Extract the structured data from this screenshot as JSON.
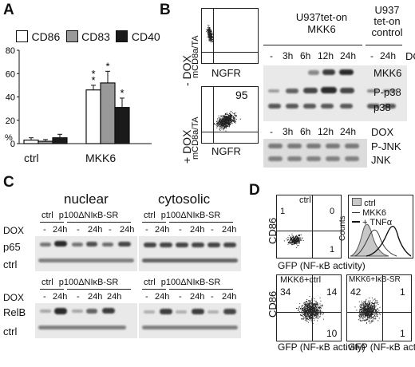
{
  "panel_a": {
    "letter": "A",
    "chart_data": {
      "type": "bar",
      "categories": [
        "ctrl",
        "MKK6"
      ],
      "series": [
        {
          "name": "CD86",
          "values": [
            3,
            46
          ],
          "errors": [
            2,
            4
          ],
          "color": "#ffffff"
        },
        {
          "name": "CD83",
          "values": [
            2,
            52
          ],
          "errors": [
            1.5,
            10
          ],
          "color": "#999999"
        },
        {
          "name": "CD40",
          "values": [
            5,
            31
          ],
          "errors": [
            3,
            8
          ],
          "color": "#1a1a1a"
        }
      ],
      "ylim": [
        0,
        80
      ],
      "yticks": [
        "0",
        "20",
        "40",
        "60",
        "80"
      ],
      "ylabel": "%",
      "significance": "*"
    }
  },
  "panel_b": {
    "letter": "B",
    "minus_dox": "- DOX",
    "plus_dox": "+ DOX",
    "yaxis": "mCD8a/TA",
    "xaxis": "NGFR",
    "quad_value": "95",
    "group1": "U937tet-on MKK6",
    "group1_l1": "U937tet-on",
    "group1_l2": "MKK6",
    "group2_l1": "U937",
    "group2_l2": "tet-on",
    "group2_l3": "control",
    "lanes_top": [
      "-",
      "3h",
      "6h",
      "12h",
      "24h",
      "-",
      "24h"
    ],
    "lanes_bottom": [
      "-",
      "3h",
      "6h",
      "12h",
      "24h"
    ],
    "dox_label": "DOX",
    "blot_labels": [
      "MKK6",
      "P-p38",
      "p38",
      "P-JNK",
      "JNK"
    ]
  },
  "panel_c": {
    "letter": "C",
    "nuclear": "nuclear",
    "cytosolic": "cytosolic",
    "ctrl": "ctrl",
    "construct": "p100ΔNIκB-SR",
    "dox": "DOX",
    "lanes_1": [
      "-",
      "24h",
      "-",
      "24h",
      "-",
      "24h"
    ],
    "lanes_2": [
      "-",
      "24h",
      "-",
      "24h",
      "24h"
    ],
    "lanes_3": [
      "-",
      "24h",
      "-",
      "24h",
      "-",
      "24h"
    ],
    "lanes_4": [
      "-",
      "24h",
      "-",
      "24h",
      "-",
      "24h"
    ],
    "row_p65": "p65",
    "row_relb": "RelB",
    "row_ctrl": "ctrl"
  },
  "panel_d": {
    "letter": "D",
    "plot1_title": "ctrl",
    "plot1_quads": [
      "1",
      "0",
      "1"
    ],
    "plot3_title": "MKK6+ctrl",
    "plot3_quads": [
      "34",
      "14",
      "10"
    ],
    "plot4_title": "MKK6+IκB-SR",
    "plot4_quads": [
      "42",
      "1",
      "1"
    ],
    "yaxis": "CD86",
    "xaxis": "GFP (NF-κB activity)",
    "hist_ylabel": "Counts",
    "legend": [
      "ctrl",
      "MKK6",
      "+ TNFα"
    ]
  }
}
